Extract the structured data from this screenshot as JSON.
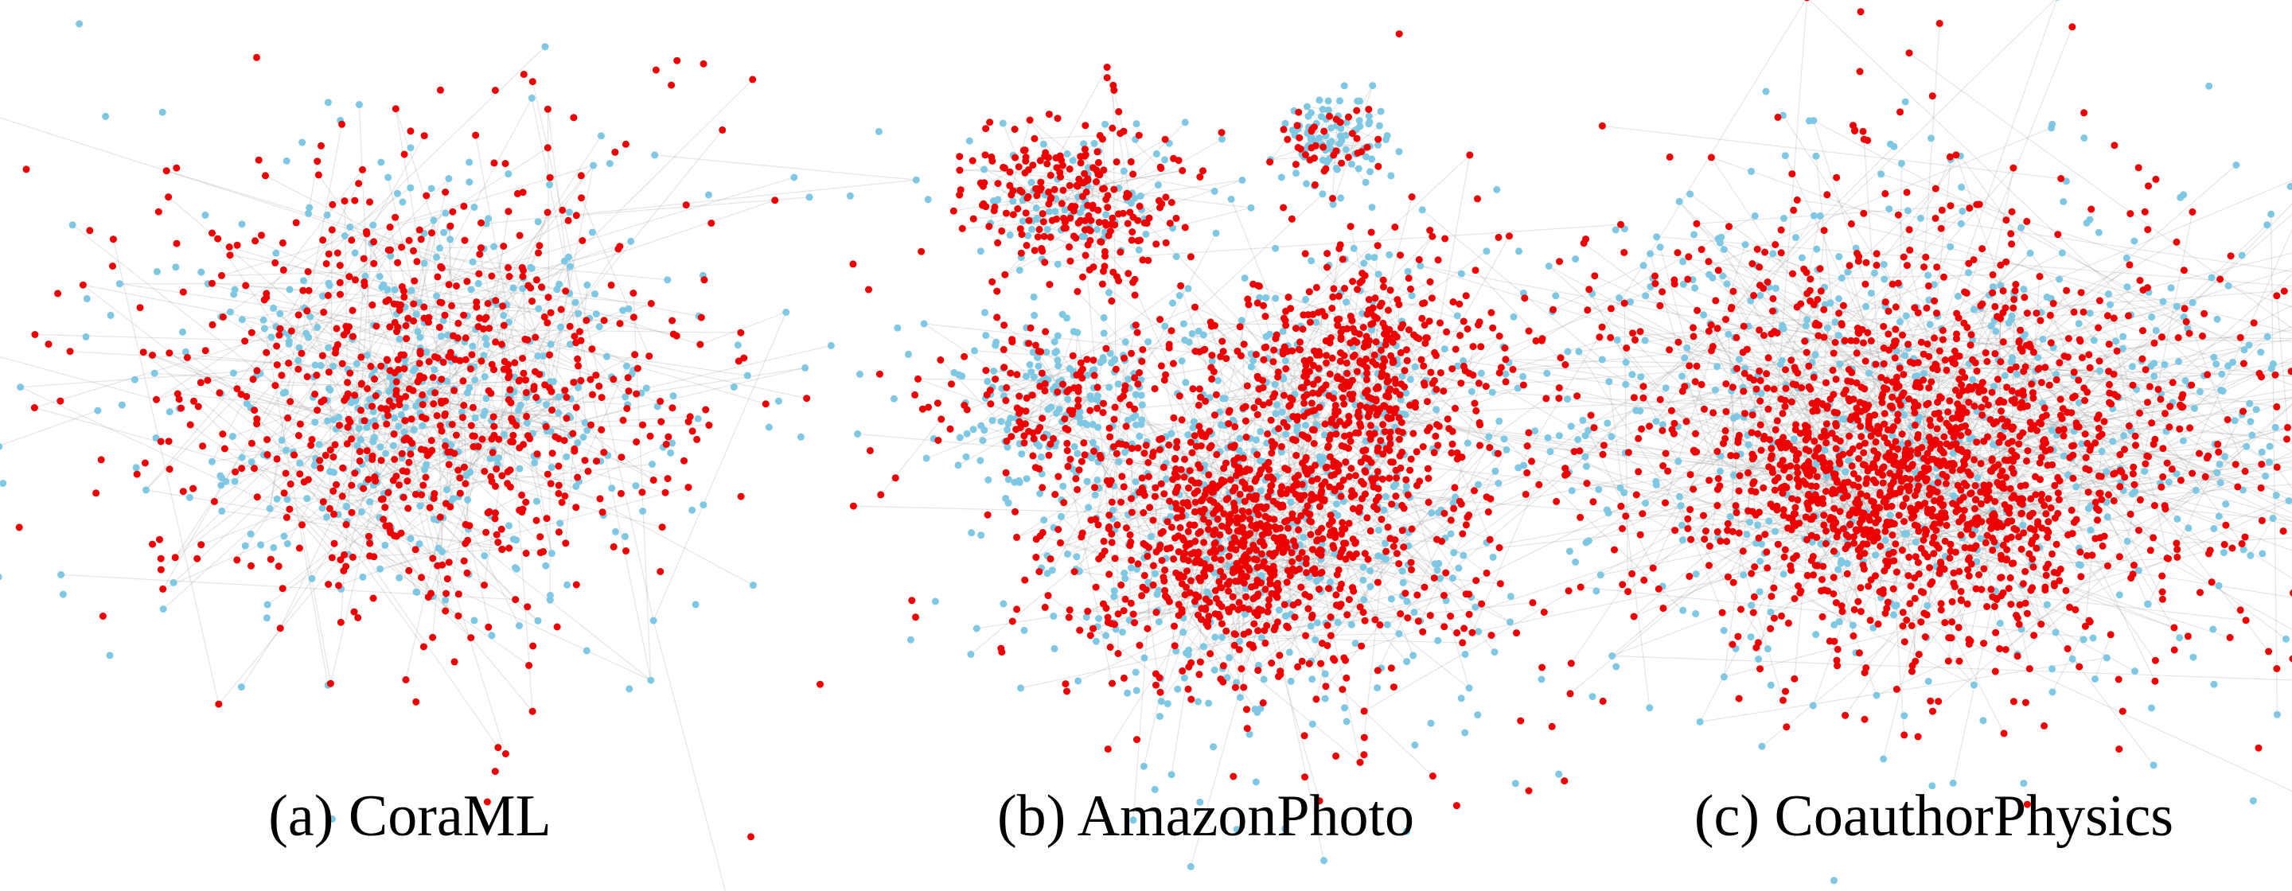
{
  "panels": [
    {
      "caption": "(a) CoraML"
    },
    {
      "caption": "(b) AmazonPhoto"
    },
    {
      "caption": "(c) CoauthorPhysics"
    }
  ]
}
